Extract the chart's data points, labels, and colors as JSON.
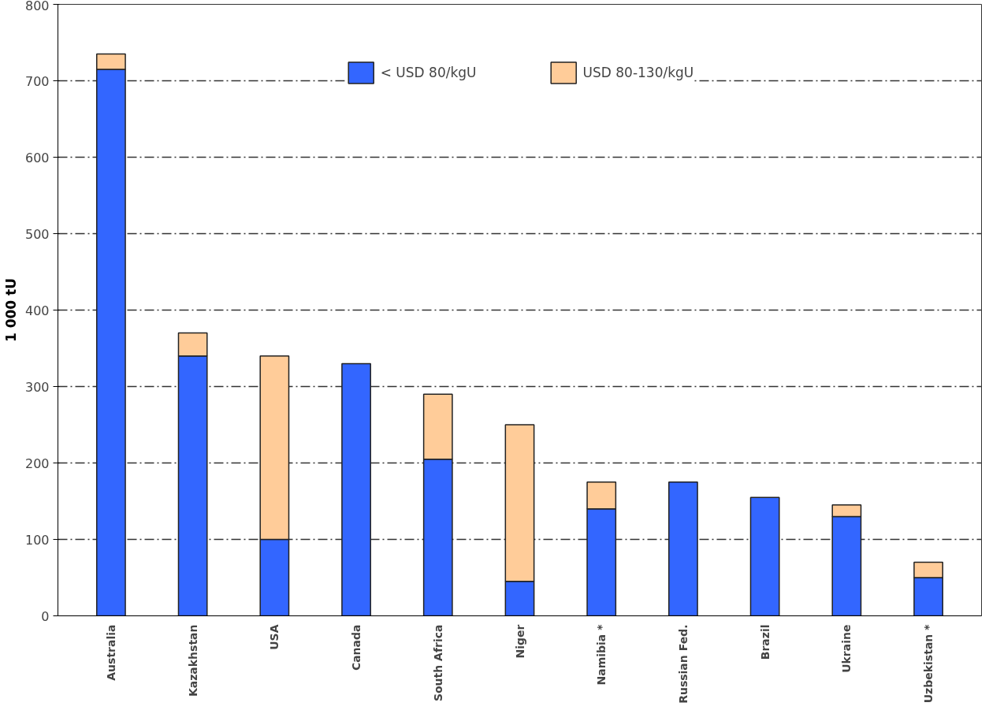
{
  "chart_data": {
    "type": "bar",
    "stacked": true,
    "ylabel": "1 000 tU",
    "categories": [
      "Australia",
      "Kazakhstan",
      "USA",
      "Canada",
      "South Africa",
      "Niger",
      "Namibia *",
      "Russian Fed.",
      "Brazil",
      "Ukraine",
      "Uzbekistan *"
    ],
    "series": [
      {
        "name": "< USD 80/kgU",
        "color": "#3366ff",
        "values": [
          715,
          340,
          100,
          330,
          205,
          45,
          140,
          175,
          155,
          130,
          50
        ]
      },
      {
        "name": "USD 80-130/kgU",
        "color": "#ffcc99",
        "values": [
          20,
          30,
          240,
          null,
          85,
          205,
          35,
          null,
          null,
          15,
          20
        ]
      }
    ],
    "ylim": [
      0,
      800
    ],
    "yticks": [
      0,
      100,
      200,
      300,
      400,
      500,
      600,
      700,
      800
    ],
    "grid": "y",
    "legend": "top"
  }
}
